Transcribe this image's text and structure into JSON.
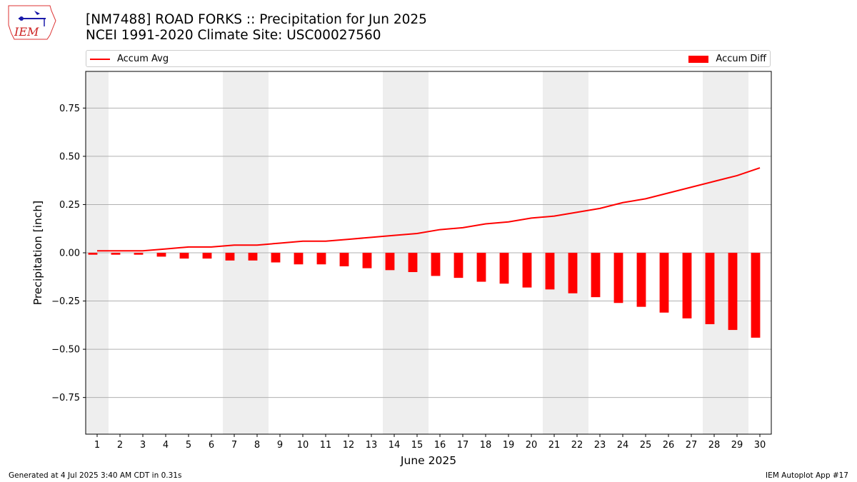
{
  "header": {
    "title_line1": "[NM7488] ROAD FORKS :: Precipitation for Jun 2025",
    "title_line2": "NCEI 1991-2020 Climate Site: USC00027560"
  },
  "logo": {
    "text": "IEM"
  },
  "legend": {
    "line_label": "Accum Avg",
    "bar_label": "Accum Diff",
    "placement": "top, outside plot"
  },
  "footer": {
    "left": "Generated at 4 Jul 2025 3:40 AM CDT in 0.31s",
    "right": "IEM Autoplot App #17"
  },
  "colors": {
    "series": "#ff0000",
    "weekend_shade": "#eeeeee",
    "grid": "#b0b0b0"
  },
  "chart_data": {
    "type": "bar",
    "xlabel": "June 2025",
    "ylabel": "Precipitation [inch]",
    "ylim": [
      -0.94,
      0.94
    ],
    "xlim": [
      0.5,
      30.5
    ],
    "yticks": [
      -0.75,
      -0.5,
      -0.25,
      0.0,
      0.25,
      0.5,
      0.75
    ],
    "ytick_labels": [
      "−0.75",
      "−0.50",
      "−0.25",
      "0.00",
      "0.25",
      "0.50",
      "0.75"
    ],
    "categories": [
      1,
      2,
      3,
      4,
      5,
      6,
      7,
      8,
      9,
      10,
      11,
      12,
      13,
      14,
      15,
      16,
      17,
      18,
      19,
      20,
      21,
      22,
      23,
      24,
      25,
      26,
      27,
      28,
      29,
      30
    ],
    "grid": "horizontal",
    "shaded_days": [
      1,
      7,
      8,
      14,
      15,
      21,
      22,
      28,
      29
    ],
    "series": [
      {
        "name": "Accum Avg",
        "kind": "line",
        "values": [
          0.01,
          0.01,
          0.01,
          0.02,
          0.03,
          0.03,
          0.04,
          0.04,
          0.05,
          0.06,
          0.06,
          0.07,
          0.08,
          0.09,
          0.1,
          0.12,
          0.13,
          0.15,
          0.16,
          0.18,
          0.19,
          0.21,
          0.23,
          0.26,
          0.28,
          0.31,
          0.34,
          0.37,
          0.4,
          0.44
        ]
      },
      {
        "name": "Accum Diff",
        "kind": "bar",
        "values": [
          -0.01,
          -0.01,
          -0.01,
          -0.02,
          -0.03,
          -0.03,
          -0.04,
          -0.04,
          -0.05,
          -0.06,
          -0.06,
          -0.07,
          -0.08,
          -0.09,
          -0.1,
          -0.12,
          -0.13,
          -0.15,
          -0.16,
          -0.18,
          -0.19,
          -0.21,
          -0.23,
          -0.26,
          -0.28,
          -0.31,
          -0.34,
          -0.37,
          -0.4,
          -0.44
        ]
      }
    ]
  }
}
